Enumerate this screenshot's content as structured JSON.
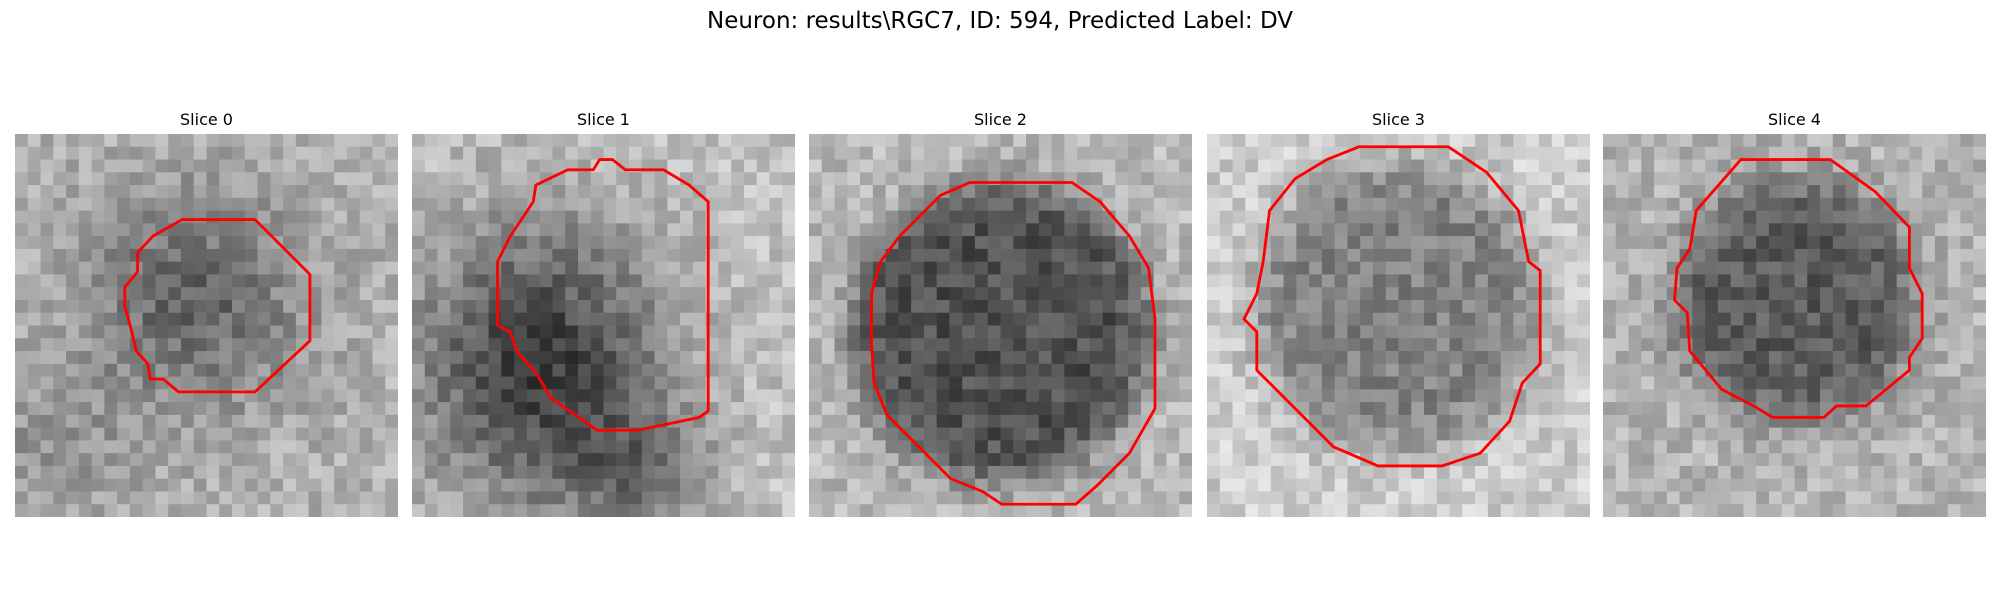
{
  "header": {
    "title": "Neuron: results\\RGC7, ID: 594, Predicted Label: DV"
  },
  "panels": [
    {
      "title": "Slice 0"
    },
    {
      "title": "Slice 1"
    },
    {
      "title": "Slice 2"
    },
    {
      "title": "Slice 3"
    },
    {
      "title": "Slice 4"
    }
  ]
}
